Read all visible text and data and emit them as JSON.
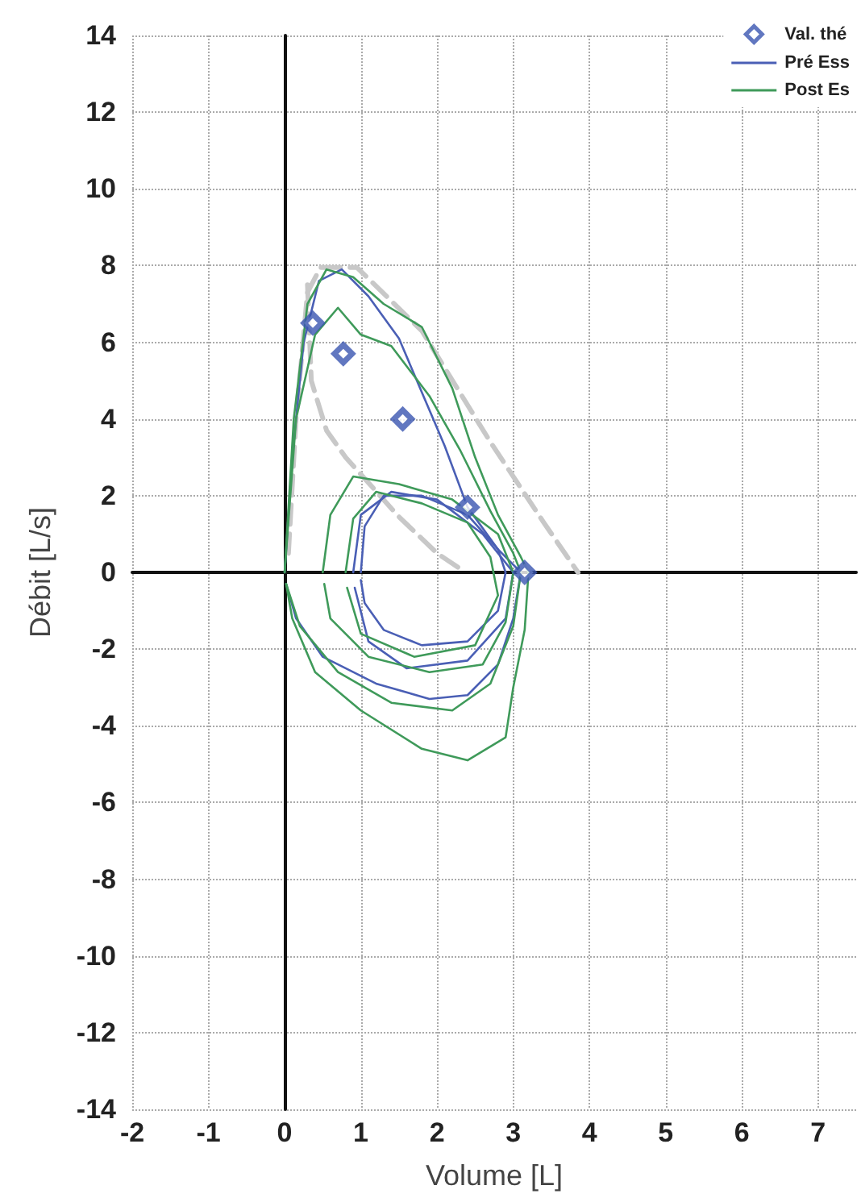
{
  "chart_data": {
    "type": "line",
    "xlabel": "Volume [L]",
    "ylabel": "Débit [L/s]",
    "xlim": [
      -2,
      7.5
    ],
    "xticks": [
      -2,
      -1,
      0,
      1,
      2,
      3,
      4,
      5,
      6,
      7
    ],
    "ylim": [
      -14,
      14
    ],
    "yticks": [
      -14,
      -12,
      -10,
      -8,
      -6,
      -4,
      -2,
      0,
      2,
      4,
      6,
      8,
      10,
      12,
      14
    ],
    "grid": true,
    "legend": "top right",
    "series": [
      {
        "name": "Val. thé",
        "type": "scatter",
        "marker": "diamond",
        "color": "#3a55b0",
        "x": [
          0.37,
          0.77,
          1.55,
          2.4,
          3.15
        ],
        "values": [
          6.5,
          5.7,
          4.0,
          1.7,
          0
        ]
      },
      {
        "name": "Pré Ess",
        "color": "#4a5fb5",
        "marker": "none",
        "x": [
          0,
          0.1,
          0.25,
          0.45,
          0.75,
          1.1,
          1.5,
          1.8,
          2.1,
          2.4,
          2.8,
          3.1,
          3.0,
          2.8,
          2.4,
          1.9,
          1.2,
          0.5,
          0.15,
          0.02
        ],
        "values": [
          0,
          3,
          6,
          7.6,
          7.9,
          7.2,
          6.1,
          4.7,
          3.3,
          1.7,
          0.6,
          0,
          -1.2,
          -2.4,
          -3.2,
          -3.3,
          -2.9,
          -2.2,
          -1.2,
          -0.3
        ]
      },
      {
        "name": "Post Es",
        "color": "#3f9a5a",
        "marker": "none",
        "x": [
          0,
          0.12,
          0.3,
          0.55,
          0.9,
          1.3,
          1.8,
          2.2,
          2.5,
          2.8,
          3.1,
          3.2,
          3.15,
          3.0,
          2.9,
          2.4,
          1.8,
          1.0,
          0.4,
          0.1,
          0.02
        ],
        "values": [
          0,
          4,
          7,
          7.9,
          7.7,
          7.0,
          6.4,
          4.8,
          3.0,
          1.5,
          0.4,
          0,
          -1.5,
          -3,
          -4.3,
          -4.9,
          -4.6,
          -3.6,
          -2.6,
          -1.2,
          -0.3
        ]
      },
      {
        "color": "#4a5fb5",
        "marker": "none",
        "x": [
          1.0,
          1.05,
          1.3,
          1.8,
          2.4,
          2.8,
          2.9,
          2.8,
          2.4,
          1.8,
          1.3,
          1.05,
          1.0
        ],
        "values": [
          0,
          1.2,
          2.0,
          2.0,
          1.5,
          0.6,
          0,
          -1.0,
          -1.8,
          -1.9,
          -1.5,
          -0.8,
          -0.2
        ]
      },
      {
        "color": "#4a5fb5",
        "marker": "none",
        "x": [
          0.9,
          1.0,
          1.4,
          2.0,
          2.6,
          3.0,
          2.9,
          2.4,
          1.6,
          1.1,
          0.92
        ],
        "values": [
          0,
          1.5,
          2.1,
          1.9,
          1.0,
          0,
          -1.2,
          -2.3,
          -2.5,
          -1.8,
          -0.4
        ]
      },
      {
        "color": "#3f9a5a",
        "marker": "none",
        "x": [
          0,
          0.15,
          0.4,
          0.7,
          1.0,
          1.4,
          1.9,
          2.3,
          2.7,
          3.0,
          3.1,
          3.0,
          2.7,
          2.2,
          1.4,
          0.7,
          0.2,
          0.02
        ],
        "values": [
          0,
          4,
          6.2,
          6.9,
          6.2,
          5.9,
          4.6,
          3.2,
          1.6,
          0.5,
          0,
          -1.4,
          -2.9,
          -3.6,
          -3.4,
          -2.6,
          -1.4,
          -0.3
        ]
      },
      {
        "color": "#3f9a5a",
        "marker": "none",
        "x": [
          0.5,
          0.6,
          0.9,
          1.5,
          2.2,
          2.8,
          3.0,
          2.9,
          2.6,
          1.9,
          1.1,
          0.6,
          0.52
        ],
        "values": [
          0,
          1.5,
          2.5,
          2.3,
          1.9,
          1.0,
          0,
          -1.3,
          -2.4,
          -2.6,
          -2.2,
          -1.2,
          -0.3
        ]
      },
      {
        "color": "#3f9a5a",
        "marker": "none",
        "x": [
          0.8,
          0.9,
          1.2,
          1.8,
          2.4,
          2.7,
          2.8,
          2.5,
          1.7,
          1.0,
          0.82
        ],
        "values": [
          0,
          1.4,
          2.1,
          1.8,
          1.3,
          0.4,
          -0.6,
          -1.9,
          -2.2,
          -1.6,
          -0.4
        ]
      },
      {
        "color": "#c8c8c8",
        "marker": "none",
        "line_style": "dashed",
        "x": [
          0.05,
          0.15,
          0.3,
          0.47,
          0.95,
          1.8,
          2.7,
          3.4,
          3.85
        ],
        "values": [
          0.5,
          4,
          7.3,
          7.95,
          7.95,
          6.3,
          3.4,
          1.3,
          0
        ]
      },
      {
        "color": "#c8c8c8",
        "marker": "none",
        "line_style": "dashed",
        "x": [
          0.3,
          0.35,
          0.55,
          0.8,
          1.5,
          2.0,
          2.3
        ],
        "values": [
          7.5,
          5,
          3.7,
          3,
          1.45,
          0.5,
          0.1
        ]
      }
    ]
  }
}
